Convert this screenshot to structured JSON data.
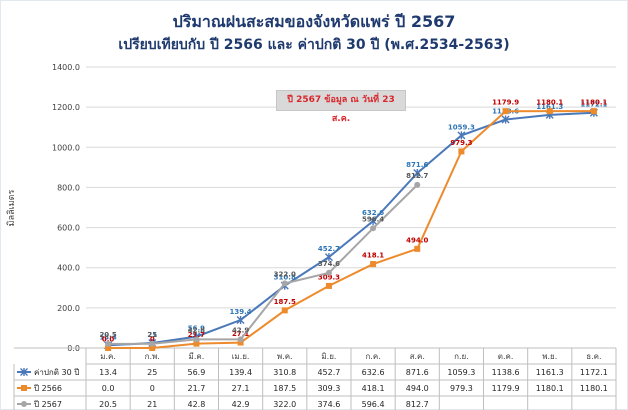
{
  "title": "ปริมาณฝนสะสมของจังหวัดแพร่ ปี 2567",
  "subtitle": "เปรียบเทียบกับ ปี 2566 และ ค่าปกติ 30 ปี (พ.ศ.2534-2563)",
  "annotation": "ปี 2567 ข้อมูล ณ วันที่ 23 ส.ค.",
  "chart_data": {
    "type": "line",
    "title": "ปริมาณฝนสะสมของจังหวัดแพร่ ปี 2567",
    "ylabel": "มิลลิเมตร",
    "xlabel": "",
    "ylim": [
      0,
      1400
    ],
    "yticks": [
      "0.0",
      "200.0",
      "400.0",
      "600.0",
      "800.0",
      "1000.0",
      "1200.0",
      "1400.0"
    ],
    "grid": true,
    "legend": "data-table-left",
    "categories": [
      "ม.ค.",
      "ก.พ.",
      "มี.ค.",
      "เม.ย.",
      "พ.ค.",
      "มิ.ย.",
      "ก.ค.",
      "ส.ค.",
      "ก.ย.",
      "ต.ค.",
      "พ.ย.",
      "ธ.ค."
    ],
    "series": [
      {
        "name": "ค่าปกติ 30 ปี",
        "color": "#4a78b8",
        "marker": "star",
        "values": [
          13.4,
          25,
          56.9,
          139.4,
          310.8,
          452.7,
          632.6,
          871.6,
          1059.3,
          1138.6,
          1161.3,
          1172.1
        ],
        "table_values": [
          "13.4",
          "25",
          "56.9",
          "139.4",
          "310.8",
          "452.7",
          "632.6",
          "871.6",
          "1059.3",
          "1138.6",
          "1161.3",
          "1172.1"
        ]
      },
      {
        "name": "ปี 2566",
        "color": "#ed8b2c",
        "marker": "square",
        "values": [
          0.0,
          0.0,
          21.7,
          27.1,
          187.5,
          309.3,
          418.1,
          494.0,
          979.3,
          1179.9,
          1180.1,
          1180.1
        ],
        "table_values": [
          "0.0",
          "0",
          "21.7",
          "27.1",
          "187.5",
          "309.3",
          "418.1",
          "494.0",
          "979.3",
          "1179.9",
          "1180.1",
          "1180.1"
        ]
      },
      {
        "name": "ปี 2567",
        "color": "#a6a6a6",
        "marker": "circle",
        "values": [
          20.5,
          21,
          42.8,
          42.9,
          322.0,
          374.6,
          596.4,
          812.7,
          null,
          null,
          null,
          null
        ],
        "table_values": [
          "20.5",
          "21",
          "42.8",
          "42.9",
          "322.0",
          "374.6",
          "596.4",
          "812.7",
          "",
          "",
          "",
          ""
        ]
      }
    ]
  }
}
